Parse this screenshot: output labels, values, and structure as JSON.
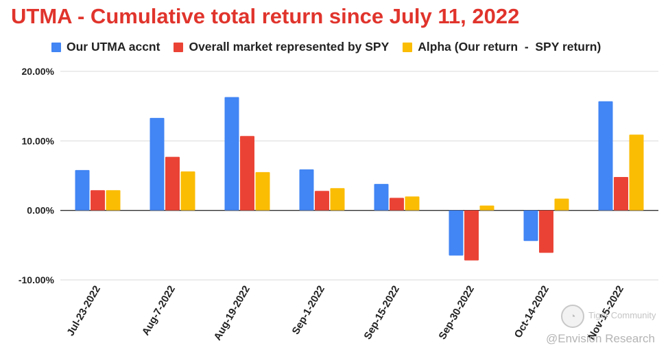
{
  "colors": {
    "title": "#e0342c",
    "series": [
      "#4285f4",
      "#ea4335",
      "#fbbc04"
    ],
    "grid": "#d9d9d9",
    "axis": "#333333"
  },
  "watermark": {
    "community": "Tiger Community",
    "author": "@Envision Research"
  },
  "chart_data": {
    "type": "bar",
    "title": "UTMA - Cumulative total return since July 11, 2022",
    "xlabel": "",
    "ylabel": "",
    "ylim": [
      -10,
      20
    ],
    "yticks": [
      20,
      10,
      0,
      -10
    ],
    "ytick_labels": [
      "20.00%",
      "10.00%",
      "0.00%",
      "-10.00%"
    ],
    "grid": true,
    "legend_position": "top",
    "categories": [
      "Jul-23-2022",
      "Aug-7-2022",
      "Aug-19-2022",
      "Sep-1-2022",
      "Sep-15-2022",
      "Sep-30-2022",
      "Oct-14-2022",
      "Nov-15-2022"
    ],
    "series": [
      {
        "name": "Our UTMA accnt",
        "values": [
          5.8,
          13.3,
          16.3,
          5.9,
          3.8,
          -6.5,
          -4.4,
          15.7
        ]
      },
      {
        "name": "Overall market represented by SPY",
        "values": [
          2.9,
          7.7,
          10.7,
          2.8,
          1.8,
          -7.2,
          -6.1,
          4.8
        ]
      },
      {
        "name": "Alpha (Our return  -  SPY return)",
        "values": [
          2.9,
          5.6,
          5.5,
          3.2,
          2.0,
          0.7,
          1.7,
          10.9
        ]
      }
    ]
  }
}
